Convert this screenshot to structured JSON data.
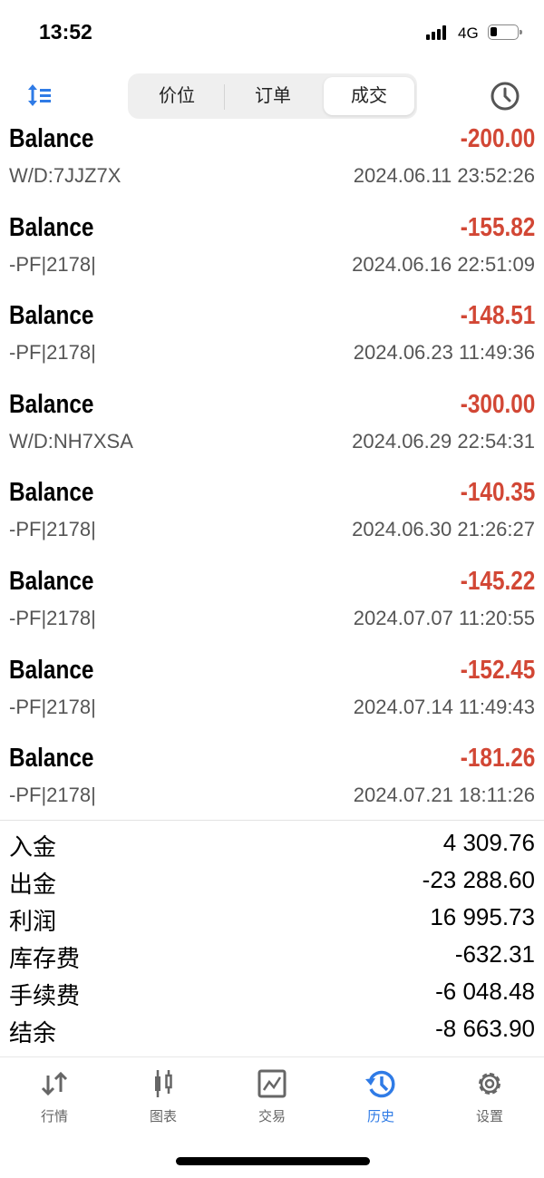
{
  "status_bar": {
    "time": "13:52",
    "network": "4G",
    "battery_level": 0.2
  },
  "top_bar": {
    "sort_icon": "sort-list-icon",
    "segments": [
      "价位",
      "订单",
      "成交"
    ],
    "active_segment": 2,
    "period_icon": "clock-icon"
  },
  "deals": [
    {
      "type": "Balance",
      "amount": "-200.00",
      "comment": "W/D:7JJZ7X",
      "date": "2024.06.11 23:52:26"
    },
    {
      "type": "Balance",
      "amount": "-155.82",
      "comment": "-PF|2178|",
      "date": "2024.06.16 22:51:09"
    },
    {
      "type": "Balance",
      "amount": "-148.51",
      "comment": "-PF|2178|",
      "date": "2024.06.23 11:49:36"
    },
    {
      "type": "Balance",
      "amount": "-300.00",
      "comment": "W/D:NH7XSA",
      "date": "2024.06.29 22:54:31"
    },
    {
      "type": "Balance",
      "amount": "-140.35",
      "comment": "-PF|2178|",
      "date": "2024.06.30 21:26:27"
    },
    {
      "type": "Balance",
      "amount": "-145.22",
      "comment": "-PF|2178|",
      "date": "2024.07.07 11:20:55"
    },
    {
      "type": "Balance",
      "amount": "-152.45",
      "comment": "-PF|2178|",
      "date": "2024.07.14 11:49:43"
    },
    {
      "type": "Balance",
      "amount": "-181.26",
      "comment": "-PF|2178|",
      "date": "2024.07.21 18:11:26"
    }
  ],
  "summary": [
    {
      "label": "入金",
      "value": "4 309.76"
    },
    {
      "label": "出金",
      "value": "-23 288.60"
    },
    {
      "label": "利润",
      "value": "16 995.73"
    },
    {
      "label": "库存费",
      "value": "-632.31"
    },
    {
      "label": "手续费",
      "value": "-6 048.48"
    },
    {
      "label": "结余",
      "value": "-8 663.90"
    }
  ],
  "tab_bar": {
    "items": [
      {
        "label": "行情",
        "icon": "quotes-arrows-icon"
      },
      {
        "label": "图表",
        "icon": "candlestick-icon"
      },
      {
        "label": "交易",
        "icon": "trade-chart-icon"
      },
      {
        "label": "历史",
        "icon": "history-icon"
      },
      {
        "label": "设置",
        "icon": "settings-gear-icon"
      }
    ],
    "active": 3
  },
  "colors": {
    "accent": "#2f7be6",
    "negative": "#d24735"
  }
}
